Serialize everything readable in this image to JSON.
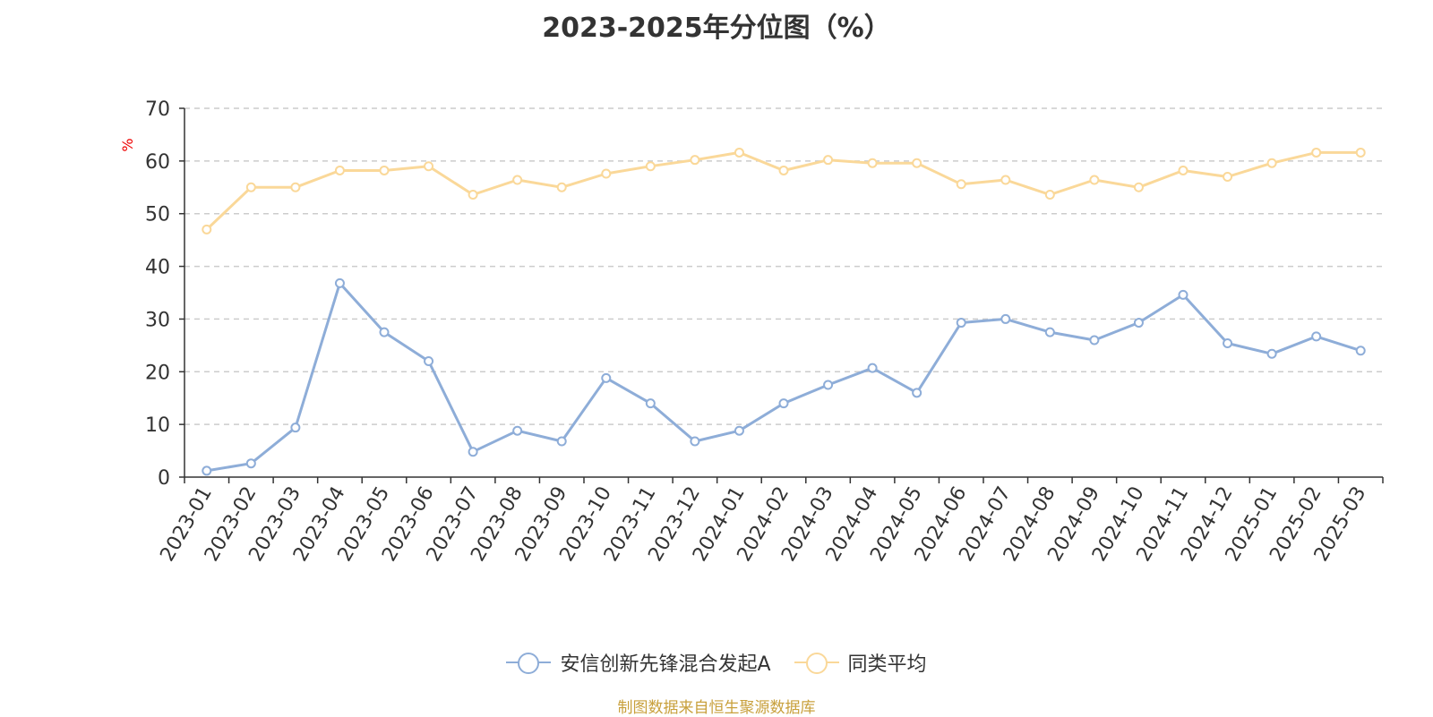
{
  "title": "2023-2025年分位图（%）",
  "source": "制图数据来自恒生聚源数据库",
  "chart_data": {
    "type": "line",
    "title": "2023-2025年分位图（%）",
    "ylabel": "%",
    "xlabel": "",
    "ylim": [
      0,
      70
    ],
    "yticks": [
      0,
      10,
      20,
      30,
      40,
      50,
      60,
      70
    ],
    "grid": true,
    "legend_position": "bottom",
    "categories": [
      "2023-01",
      "2023-02",
      "2023-03",
      "2023-04",
      "2023-05",
      "2023-06",
      "2023-07",
      "2023-08",
      "2023-09",
      "2023-10",
      "2023-11",
      "2023-12",
      "2024-01",
      "2024-02",
      "2024-03",
      "2024-04",
      "2024-05",
      "2024-06",
      "2024-07",
      "2024-08",
      "2024-09",
      "2024-10",
      "2024-11",
      "2024-12",
      "2025-01",
      "2025-02",
      "2025-03"
    ],
    "series": [
      {
        "name": "安信创新先锋混合发起A",
        "color": "#8eadd8",
        "values": [
          1.2,
          2.6,
          9.4,
          36.8,
          27.5,
          22.0,
          4.8,
          8.8,
          6.8,
          18.8,
          14.0,
          6.8,
          8.8,
          14.0,
          17.5,
          20.7,
          16.0,
          29.3,
          30.0,
          27.5,
          26.0,
          29.3,
          34.6,
          25.4,
          23.4,
          26.7,
          24.0
        ]
      },
      {
        "name": "同类平均",
        "color": "#fad899",
        "values": [
          47.0,
          55.0,
          55.0,
          58.2,
          58.2,
          59.0,
          53.6,
          56.4,
          55.0,
          57.6,
          59.0,
          60.2,
          61.6,
          58.2,
          60.2,
          59.6,
          59.6,
          55.6,
          56.4,
          53.6,
          56.4,
          55.0,
          58.2,
          57.0,
          59.6,
          61.6,
          61.6
        ]
      }
    ]
  }
}
